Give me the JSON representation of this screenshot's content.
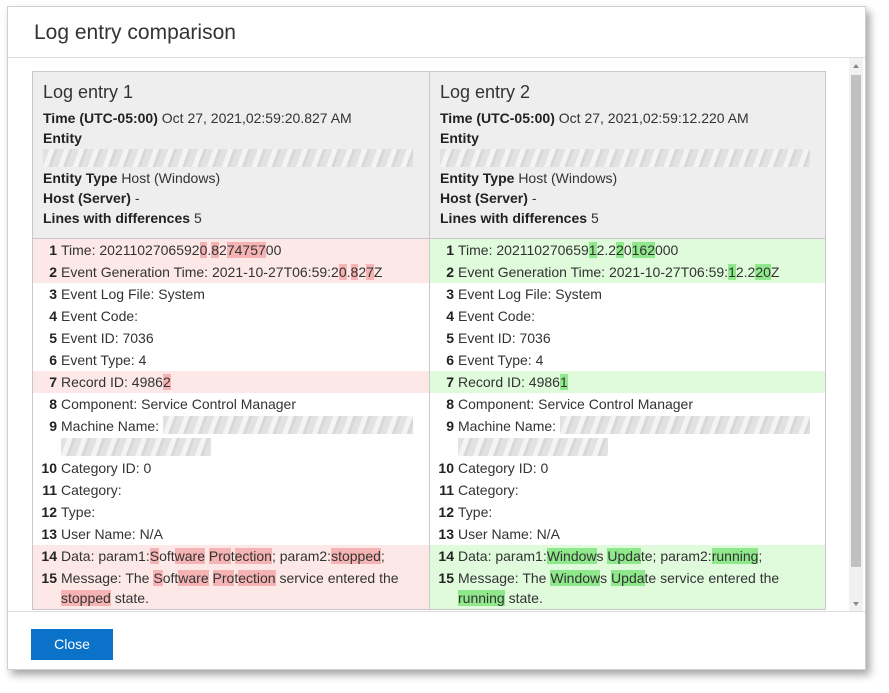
{
  "dialog": {
    "title": "Log entry comparison",
    "close_button": "Close",
    "entries": [
      {
        "title": "Log entry 1",
        "fields": [
          {
            "label": "Time (UTC-05:00)",
            "value": "Oct 27, 2021,02:59:20.827 AM"
          },
          {
            "label": "Entity"
          },
          {
            "label": "Entity Type",
            "value": "Host (Windows)"
          },
          {
            "label": "Host (Server)",
            "value": "-"
          },
          {
            "label": "Lines with differences",
            "value": 5
          }
        ],
        "lines": [
          {
            "number": 1,
            "parts": [
              {
                "text": "Time: 2021102706592"
              },
              {
                "text": "0",
                "changed": true
              },
              {
                "text": "."
              },
              {
                "text": "8",
                "changed": true
              },
              {
                "text": "2"
              },
              {
                "text": "74757",
                "changed": true
              },
              {
                "text": "00"
              }
            ]
          },
          {
            "number": 2,
            "parts": [
              {
                "text": "Event Generation Time: 2021-10-27T06:59:2"
              },
              {
                "text": "0",
                "changed": true
              },
              {
                "text": "."
              },
              {
                "text": "8",
                "changed": true
              },
              {
                "text": "2"
              },
              {
                "text": "7",
                "changed": true
              },
              {
                "text": "Z"
              }
            ]
          },
          {
            "number": 3,
            "parts": [
              {
                "text": "Event Log File: System"
              }
            ]
          },
          {
            "number": 4,
            "parts": [
              {
                "text": "Event Code:"
              }
            ]
          },
          {
            "number": 5,
            "parts": [
              {
                "text": "Event ID: 7036"
              }
            ]
          },
          {
            "number": 6,
            "parts": [
              {
                "text": "Event Type: 4"
              }
            ]
          },
          {
            "number": 7,
            "parts": [
              {
                "text": "Record ID: 4986"
              },
              {
                "text": "2",
                "changed": true
              }
            ]
          },
          {
            "number": 8,
            "parts": [
              {
                "text": "Component: Service Control Manager"
              }
            ]
          },
          {
            "number": 9,
            "parts": [
              {
                "text": "Machine Name:"
              }
            ],
            "redacted": true
          },
          {
            "number": 10,
            "parts": [
              {
                "text": "Category ID: 0"
              }
            ]
          },
          {
            "number": 11,
            "parts": [
              {
                "text": "Category:"
              }
            ]
          },
          {
            "number": 12,
            "parts": [
              {
                "text": "Type:"
              }
            ]
          },
          {
            "number": 13,
            "parts": [
              {
                "text": "User Name: N/A"
              }
            ]
          },
          {
            "number": 14,
            "parts": [
              {
                "text": "Data: param1:"
              },
              {
                "text": "S",
                "changed": true
              },
              {
                "text": "oft"
              },
              {
                "text": "ware",
                "changed": true
              },
              {
                "text": " "
              },
              {
                "text": "Pro",
                "changed": true
              },
              {
                "text": "t"
              },
              {
                "text": "ection",
                "changed": true
              },
              {
                "text": "; param2:"
              },
              {
                "text": "stopped",
                "changed": true
              },
              {
                "text": ";"
              }
            ]
          },
          {
            "number": 15,
            "parts": [
              {
                "text": "Message: The "
              },
              {
                "text": "S",
                "changed": true
              },
              {
                "text": "oft"
              },
              {
                "text": "ware",
                "changed": true
              },
              {
                "text": " "
              },
              {
                "text": "Pro",
                "changed": true
              },
              {
                "text": "t"
              },
              {
                "text": "ection",
                "changed": true
              },
              {
                "text": " service entered the "
              },
              {
                "text": "stopped",
                "changed": true
              },
              {
                "text": " state."
              }
            ]
          }
        ]
      },
      {
        "title": "Log entry 2",
        "fields": [
          {
            "label": "Time (UTC-05:00)",
            "value": "Oct 27, 2021,02:59:12.220 AM"
          },
          {
            "label": "Entity"
          },
          {
            "label": "Entity Type",
            "value": "Host (Windows)"
          },
          {
            "label": "Host (Server)",
            "value": "-"
          },
          {
            "label": "Lines with differences",
            "value": 5
          }
        ],
        "lines": [
          {
            "number": 1,
            "parts": [
              {
                "text": "Time: 202110270659"
              },
              {
                "text": "1",
                "changed": true
              },
              {
                "text": "2.2"
              },
              {
                "text": "2",
                "changed": true
              },
              {
                "text": "0"
              },
              {
                "text": "162",
                "changed": true
              },
              {
                "text": "000"
              }
            ]
          },
          {
            "number": 2,
            "parts": [
              {
                "text": "Event Generation Time: 2021-10-27T06:59:"
              },
              {
                "text": "1",
                "changed": true
              },
              {
                "text": "2.2"
              },
              {
                "text": "20",
                "changed": true
              },
              {
                "text": "Z"
              }
            ]
          },
          {
            "number": 3,
            "parts": [
              {
                "text": "Event Log File: System"
              }
            ]
          },
          {
            "number": 4,
            "parts": [
              {
                "text": "Event Code:"
              }
            ]
          },
          {
            "number": 5,
            "parts": [
              {
                "text": "Event ID: 7036"
              }
            ]
          },
          {
            "number": 6,
            "parts": [
              {
                "text": "Event Type: 4"
              }
            ]
          },
          {
            "number": 7,
            "parts": [
              {
                "text": "Record ID: 4986"
              },
              {
                "text": "1",
                "changed": true
              }
            ]
          },
          {
            "number": 8,
            "parts": [
              {
                "text": "Component: Service Control Manager"
              }
            ]
          },
          {
            "number": 9,
            "parts": [
              {
                "text": "Machine Name:"
              }
            ],
            "redacted": true
          },
          {
            "number": 10,
            "parts": [
              {
                "text": "Category ID: 0"
              }
            ]
          },
          {
            "number": 11,
            "parts": [
              {
                "text": "Category:"
              }
            ]
          },
          {
            "number": 12,
            "parts": [
              {
                "text": "Type:"
              }
            ]
          },
          {
            "number": 13,
            "parts": [
              {
                "text": "User Name: N/A"
              }
            ]
          },
          {
            "number": 14,
            "parts": [
              {
                "text": "Data: param1:"
              },
              {
                "text": "Window",
                "changed": true
              },
              {
                "text": "s "
              },
              {
                "text": "Upda",
                "changed": true
              },
              {
                "text": "te; param2:"
              },
              {
                "text": "running",
                "changed": true
              },
              {
                "text": ";"
              }
            ]
          },
          {
            "number": 15,
            "parts": [
              {
                "text": "Message: The "
              },
              {
                "text": "Window",
                "changed": true
              },
              {
                "text": "s "
              },
              {
                "text": "Upda",
                "changed": true
              },
              {
                "text": "te service entered the "
              },
              {
                "text": "running",
                "changed": true
              },
              {
                "text": " state."
              }
            ]
          }
        ]
      }
    ]
  }
}
